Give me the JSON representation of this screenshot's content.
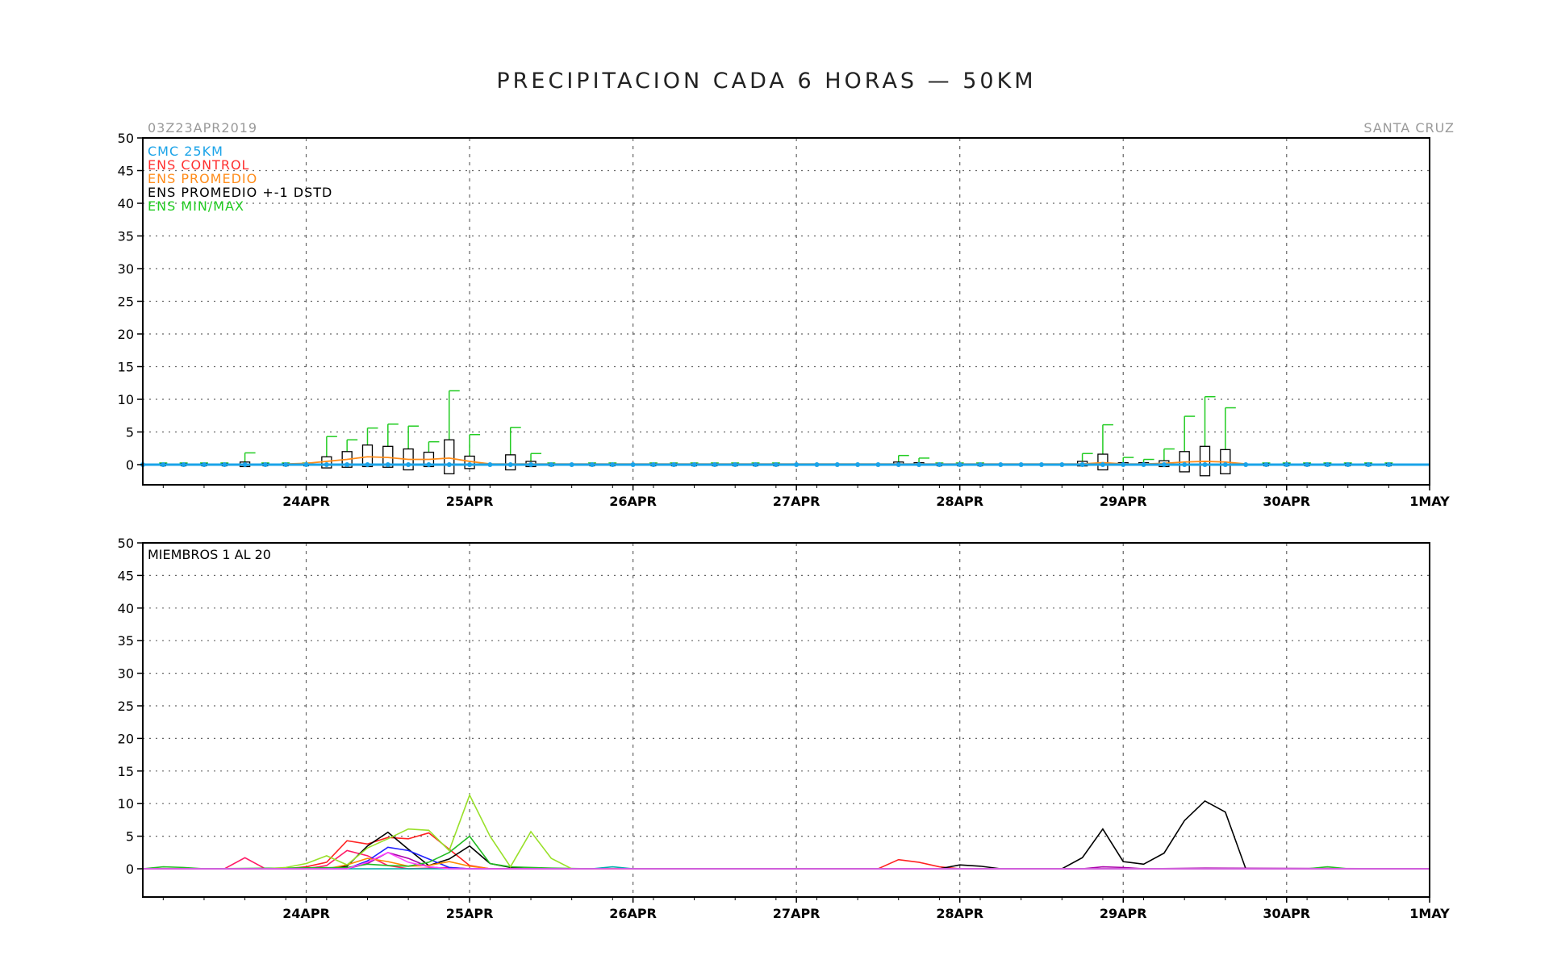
{
  "title": "PRECIPITACION CADA 6 HORAS — 50KM",
  "run_label": "03Z23APR2019",
  "station_label": "SANTA CRUZ",
  "colors": {
    "cmc": "#1aa3e8",
    "control": "#ff3030",
    "promedio": "#ff8c1a",
    "box": "#000000",
    "minmax": "#22cc22",
    "members": [
      "#ff1a66",
      "#ff2222",
      "#000000",
      "#2222ff",
      "#aa00aa",
      "#ff8800",
      "#22bb22",
      "#99e02a",
      "#00aaaa",
      "#ff44ff"
    ]
  },
  "chart_data": [
    {
      "type": "line",
      "name": "ensemble_summary",
      "legend": [
        {
          "label": "CMC 25KM",
          "color": "#1aa3e8"
        },
        {
          "label": "ENS CONTROL",
          "color": "#ff3030"
        },
        {
          "label": "ENS PROMEDIO",
          "color": "#ff8c1a"
        },
        {
          "label": "ENS PROMEDIO +-1 DSTD",
          "color": "#000000"
        },
        {
          "label": "ENS MIN/MAX",
          "color": "#22cc22"
        }
      ],
      "xlim": [
        -0.125,
        7.75
      ],
      "ylim": [
        -3,
        50
      ],
      "y_ticks": [
        0,
        5,
        10,
        15,
        20,
        25,
        30,
        35,
        40,
        45,
        50
      ],
      "x_ticks": [
        {
          "day": 0.875,
          "label": "24APR"
        },
        {
          "day": 1.875,
          "label": "25APR"
        },
        {
          "day": 2.875,
          "label": "26APR"
        },
        {
          "day": 3.875,
          "label": "27APR"
        },
        {
          "day": 4.875,
          "label": "28APR"
        },
        {
          "day": 5.875,
          "label": "29APR"
        },
        {
          "day": 6.875,
          "label": "30APR"
        },
        {
          "day": 7.875,
          "label": "1MAY"
        }
      ],
      "grid": true,
      "boxes": [
        {
          "x": 0.5,
          "low": -0.3,
          "high": 0.4,
          "max": 1.8
        },
        {
          "x": 1.0,
          "low": -0.5,
          "high": 1.2,
          "max": 4.3
        },
        {
          "x": 1.125,
          "low": -0.4,
          "high": 2.0,
          "max": 3.8
        },
        {
          "x": 1.25,
          "low": -0.3,
          "high": 3.0,
          "max": 5.6
        },
        {
          "x": 1.375,
          "low": -0.4,
          "high": 2.8,
          "max": 6.2
        },
        {
          "x": 1.5,
          "low": -0.8,
          "high": 2.4,
          "max": 5.9
        },
        {
          "x": 1.625,
          "low": -0.3,
          "high": 1.9,
          "max": 3.5
        },
        {
          "x": 1.75,
          "low": -1.4,
          "high": 3.8,
          "max": 11.3
        },
        {
          "x": 1.875,
          "low": -0.6,
          "high": 1.3,
          "max": 4.6
        },
        {
          "x": 2.125,
          "low": -0.8,
          "high": 1.5,
          "max": 5.7
        },
        {
          "x": 2.25,
          "low": -0.3,
          "high": 0.5,
          "max": 1.7
        },
        {
          "x": 4.5,
          "low": -0.1,
          "high": 0.4,
          "max": 1.4
        },
        {
          "x": 4.625,
          "low": -0.1,
          "high": 0.3,
          "max": 1.0
        },
        {
          "x": 5.625,
          "low": -0.2,
          "high": 0.5,
          "max": 1.7
        },
        {
          "x": 5.75,
          "low": -0.8,
          "high": 1.6,
          "max": 6.1
        },
        {
          "x": 5.875,
          "low": -0.1,
          "high": 0.3,
          "max": 1.1
        },
        {
          "x": 6.0,
          "low": -0.1,
          "high": 0.3,
          "max": 0.8
        },
        {
          "x": 6.125,
          "low": -0.3,
          "high": 0.6,
          "max": 2.4
        },
        {
          "x": 6.25,
          "low": -1.1,
          "high": 2.0,
          "max": 7.4
        },
        {
          "x": 6.375,
          "low": -1.7,
          "high": 2.8,
          "max": 10.4
        },
        {
          "x": 6.5,
          "low": -1.4,
          "high": 2.3,
          "max": 8.7
        }
      ],
      "small_marks_x": [
        0.0,
        0.125,
        0.25,
        0.375,
        0.625,
        0.75,
        0.875,
        2.375,
        2.625,
        2.75,
        3.0,
        3.125,
        3.25,
        3.375,
        3.5,
        3.625,
        3.75,
        4.75,
        4.875,
        5.0,
        6.75,
        6.875,
        7.0,
        7.125,
        7.25,
        7.375,
        7.5
      ],
      "cmc": {
        "x": [
          -0.125,
          7.75
        ],
        "values": [
          0,
          0
        ]
      },
      "promedio": {
        "x": [
          0.75,
          0.875,
          1.0,
          1.125,
          1.25,
          1.375,
          1.5,
          1.625,
          1.75,
          1.875,
          2.0,
          5.625,
          5.75,
          5.875,
          6.0,
          6.125,
          6.25,
          6.375,
          6.5,
          6.625
        ],
        "values": [
          0.1,
          0.2,
          0.5,
          0.8,
          1.2,
          1.1,
          0.8,
          0.8,
          1.0,
          0.5,
          0.1,
          0.1,
          0.3,
          0.1,
          0.1,
          0.2,
          0.4,
          0.5,
          0.4,
          0.1
        ]
      }
    },
    {
      "type": "line",
      "name": "members",
      "label": "MIEMBROS 1 AL 20",
      "xlim": [
        -0.125,
        7.75
      ],
      "ylim": [
        0,
        50
      ],
      "y_ticks": [
        0,
        5,
        10,
        15,
        20,
        25,
        30,
        35,
        40,
        45,
        50
      ],
      "x_ticks": [
        {
          "day": 0.875,
          "label": "24APR"
        },
        {
          "day": 1.875,
          "label": "25APR"
        },
        {
          "day": 2.875,
          "label": "26APR"
        },
        {
          "day": 3.875,
          "label": "27APR"
        },
        {
          "day": 4.875,
          "label": "28APR"
        },
        {
          "day": 5.875,
          "label": "29APR"
        },
        {
          "day": 6.875,
          "label": "30APR"
        },
        {
          "day": 7.875,
          "label": "1MAY"
        }
      ],
      "grid": true,
      "series": [
        {
          "color": "#ff1a66",
          "points": [
            [
              -0.125,
              0
            ],
            [
              0.25,
              0
            ],
            [
              0.375,
              0
            ],
            [
              0.5,
              1.7
            ],
            [
              0.625,
              0
            ],
            [
              0.875,
              0
            ],
            [
              1.0,
              0.5
            ],
            [
              1.125,
              2.8
            ],
            [
              1.25,
              2.0
            ],
            [
              1.375,
              0.5
            ],
            [
              1.5,
              0
            ],
            [
              1.75,
              0.2
            ],
            [
              1.875,
              0
            ],
            [
              7.75,
              0
            ]
          ]
        },
        {
          "color": "#ff2222",
          "points": [
            [
              -0.125,
              0
            ],
            [
              0.75,
              0
            ],
            [
              0.875,
              0.3
            ],
            [
              1.0,
              1.0
            ],
            [
              1.125,
              4.3
            ],
            [
              1.25,
              3.8
            ],
            [
              1.375,
              4.8
            ],
            [
              1.5,
              4.6
            ],
            [
              1.625,
              5.5
            ],
            [
              1.75,
              3.0
            ],
            [
              1.875,
              0.5
            ],
            [
              2.0,
              0
            ],
            [
              4.375,
              0
            ],
            [
              4.5,
              1.4
            ],
            [
              4.625,
              1.0
            ],
            [
              4.75,
              0.3
            ],
            [
              4.875,
              0
            ],
            [
              7.75,
              0
            ]
          ]
        },
        {
          "color": "#000000",
          "points": [
            [
              -0.125,
              0
            ],
            [
              1.0,
              0
            ],
            [
              1.125,
              0.4
            ],
            [
              1.25,
              3.5
            ],
            [
              1.375,
              5.6
            ],
            [
              1.5,
              3.0
            ],
            [
              1.625,
              0.5
            ],
            [
              1.75,
              1.5
            ],
            [
              1.875,
              3.5
            ],
            [
              2.0,
              0.8
            ],
            [
              2.125,
              0.2
            ],
            [
              2.25,
              0
            ],
            [
              4.75,
              0
            ],
            [
              4.875,
              0.6
            ],
            [
              5.0,
              0.4
            ],
            [
              5.125,
              0
            ],
            [
              5.5,
              0
            ],
            [
              5.625,
              1.7
            ],
            [
              5.75,
              6.1
            ],
            [
              5.875,
              1.1
            ],
            [
              6.0,
              0.7
            ],
            [
              6.125,
              2.4
            ],
            [
              6.25,
              7.4
            ],
            [
              6.375,
              10.4
            ],
            [
              6.5,
              8.7
            ],
            [
              6.625,
              0
            ],
            [
              7.75,
              0
            ]
          ]
        },
        {
          "color": "#2222ff",
          "points": [
            [
              -0.125,
              0
            ],
            [
              1.125,
              0
            ],
            [
              1.25,
              1.2
            ],
            [
              1.375,
              3.3
            ],
            [
              1.5,
              2.8
            ],
            [
              1.625,
              1.5
            ],
            [
              1.75,
              0.2
            ],
            [
              1.875,
              0
            ],
            [
              7.75,
              0
            ]
          ]
        },
        {
          "color": "#aa00aa",
          "points": [
            [
              -0.125,
              0
            ],
            [
              1.125,
              0
            ],
            [
              1.25,
              0.8
            ],
            [
              1.375,
              2.5
            ],
            [
              1.5,
              1.6
            ],
            [
              1.625,
              0.3
            ],
            [
              1.75,
              0
            ],
            [
              5.625,
              0
            ],
            [
              5.75,
              0.3
            ],
            [
              5.875,
              0.2
            ],
            [
              6.0,
              0
            ],
            [
              6.375,
              0.1
            ],
            [
              7.75,
              0
            ]
          ]
        },
        {
          "color": "#ff8800",
          "points": [
            [
              -0.125,
              0
            ],
            [
              1.0,
              0
            ],
            [
              1.125,
              0.6
            ],
            [
              1.25,
              1.6
            ],
            [
              1.375,
              1.1
            ],
            [
              1.5,
              0.4
            ],
            [
              1.625,
              0.5
            ],
            [
              1.75,
              1.1
            ],
            [
              1.875,
              0.4
            ],
            [
              2.0,
              0
            ],
            [
              7.75,
              0
            ]
          ]
        },
        {
          "color": "#22bb22",
          "points": [
            [
              -0.125,
              0
            ],
            [
              0.0,
              0.3
            ],
            [
              0.125,
              0.2
            ],
            [
              0.25,
              0
            ],
            [
              1.125,
              0.2
            ],
            [
              1.25,
              0.7
            ],
            [
              1.375,
              0.5
            ],
            [
              1.5,
              0.4
            ],
            [
              1.625,
              1.0
            ],
            [
              1.75,
              2.5
            ],
            [
              1.875,
              5.0
            ],
            [
              2.0,
              0.8
            ],
            [
              2.125,
              0.3
            ],
            [
              2.375,
              0.1
            ],
            [
              2.625,
              0
            ],
            [
              7.0,
              0
            ],
            [
              7.125,
              0.3
            ],
            [
              7.25,
              0
            ],
            [
              7.75,
              0
            ]
          ]
        },
        {
          "color": "#99e02a",
          "points": [
            [
              -0.125,
              0
            ],
            [
              0.625,
              0
            ],
            [
              0.75,
              0.2
            ],
            [
              0.875,
              0.8
            ],
            [
              1.0,
              2.0
            ],
            [
              1.125,
              0.6
            ],
            [
              1.25,
              3.2
            ],
            [
              1.375,
              4.6
            ],
            [
              1.5,
              6.1
            ],
            [
              1.625,
              5.9
            ],
            [
              1.75,
              2.8
            ],
            [
              1.875,
              11.3
            ],
            [
              2.0,
              5.0
            ],
            [
              2.125,
              0.3
            ],
            [
              2.25,
              5.7
            ],
            [
              2.375,
              1.6
            ],
            [
              2.5,
              0
            ],
            [
              7.75,
              0
            ]
          ]
        },
        {
          "color": "#00aaaa",
          "points": [
            [
              -0.125,
              0
            ],
            [
              2.625,
              0
            ],
            [
              2.75,
              0.3
            ],
            [
              2.875,
              0
            ],
            [
              7.75,
              0
            ]
          ]
        },
        {
          "color": "#ff44ff",
          "points": [
            [
              -0.125,
              0
            ],
            [
              1.125,
              0
            ],
            [
              1.25,
              1.0
            ],
            [
              1.375,
              2.5
            ],
            [
              1.5,
              1.0
            ],
            [
              1.625,
              0.3
            ],
            [
              1.75,
              0
            ],
            [
              7.75,
              0
            ]
          ]
        }
      ]
    }
  ]
}
